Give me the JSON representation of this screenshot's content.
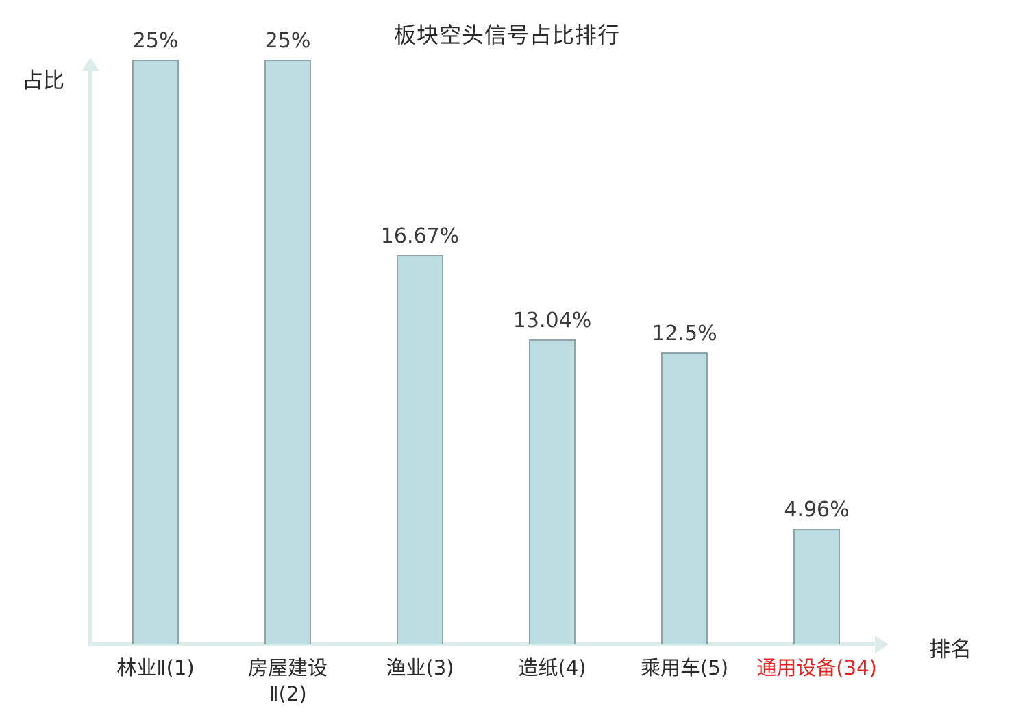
{
  "chart_data": {
    "type": "bar",
    "title": "板块空头信号占比排行",
    "xlabel": "排名",
    "ylabel": "占比",
    "categories": [
      "林业Ⅱ(1)",
      "房屋建设\nⅡ(2)",
      "渔业(3)",
      "造纸(4)",
      "乘用车(5)",
      "通用设备(34)"
    ],
    "values": [
      25,
      25,
      16.67,
      13.04,
      12.5,
      4.96
    ],
    "value_labels": [
      "25%",
      "25%",
      "16.67%",
      "13.04%",
      "12.5%",
      "4.96%"
    ],
    "highlighted_index": 5,
    "ylim": [
      0,
      25
    ],
    "grid": false,
    "legend": false,
    "colors": {
      "bar_fill": "#bcdee2",
      "bar_border": "#90a4a7",
      "axis": "#dcece8",
      "text": "#3a3a3a",
      "highlight": "#e02222"
    }
  }
}
